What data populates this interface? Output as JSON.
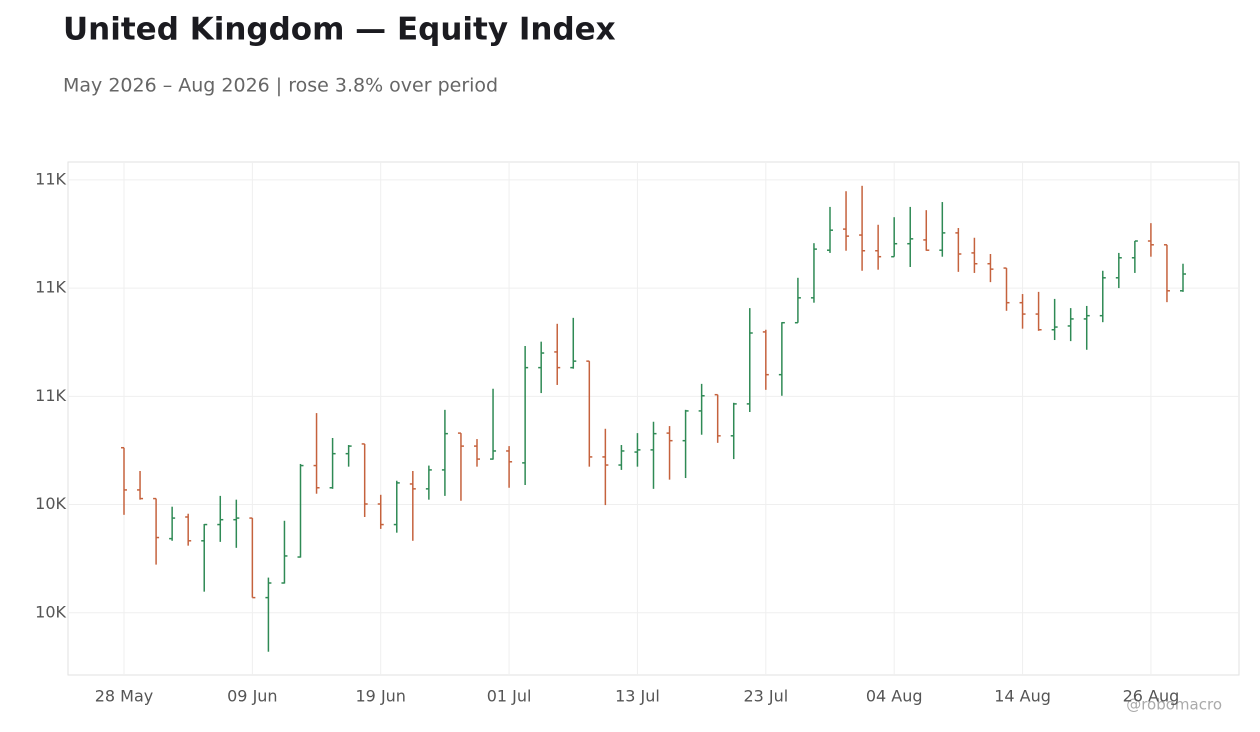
{
  "chart_data": {
    "type": "ohlc",
    "title": "United Kingdom — Equity Index",
    "subtitle": "May 2026 – Aug 2026 | rose 3.8% over period",
    "watermark": "@robomacro",
    "categories": [
      "28 May",
      null,
      null,
      null,
      null,
      null,
      null,
      null,
      "09 Jun",
      null,
      null,
      null,
      null,
      null,
      null,
      null,
      "19 Jun",
      null,
      null,
      null,
      null,
      null,
      null,
      null,
      "01 Jul",
      null,
      null,
      null,
      null,
      null,
      null,
      null,
      "13 Jul",
      null,
      null,
      null,
      null,
      null,
      null,
      null,
      "23 Jul",
      null,
      null,
      null,
      null,
      null,
      null,
      null,
      "04 Aug",
      null,
      null,
      null,
      null,
      null,
      null,
      null,
      "14 Aug",
      null,
      null,
      null,
      null,
      null,
      null,
      null,
      "26 Aug",
      null,
      null
    ],
    "open": [
      10505,
      10427,
      10411,
      10337,
      10377,
      10333,
      10363,
      10372,
      10375,
      10228,
      10255,
      10303,
      10472,
      10431,
      10494,
      10512,
      10401,
      10363,
      10438,
      10429,
      10464,
      10532,
      10508,
      10484,
      10499,
      10477,
      10653,
      10682,
      10653,
      10665,
      10488,
      10473,
      10497,
      10501,
      10532,
      10518,
      10573,
      10603,
      10527,
      10586,
      10719,
      10640,
      10736,
      10782,
      10870,
      10909,
      10898,
      10869,
      10858,
      10882,
      10889,
      10870,
      10902,
      10865,
      10845,
      10837,
      10773,
      10752,
      10723,
      10730,
      10743,
      10749,
      10819,
      10856,
      10887,
      10880,
      10795
    ],
    "high": [
      10505,
      10462,
      10411,
      10396,
      10383,
      10364,
      10416,
      10409,
      10375,
      10265,
      10370,
      10475,
      10569,
      10523,
      10510,
      10512,
      10418,
      10444,
      10462,
      10472,
      10575,
      10532,
      10521,
      10614,
      10508,
      10693,
      10701,
      10734,
      10745,
      10665,
      10540,
      10510,
      10532,
      10553,
      10545,
      10575,
      10623,
      10603,
      10588,
      10763,
      10723,
      10737,
      10819,
      10883,
      10950,
      10979,
      10989,
      10917,
      10931,
      10950,
      10944,
      10959,
      10911,
      10893,
      10863,
      10837,
      10789,
      10793,
      10780,
      10763,
      10767,
      10832,
      10865,
      10887,
      10920,
      10880,
      10845
    ],
    "low": [
      10381,
      10409,
      10289,
      10333,
      10324,
      10239,
      10331,
      10320,
      10228,
      10128,
      10254,
      10302,
      10420,
      10429,
      10470,
      10377,
      10355,
      10348,
      10333,
      10409,
      10416,
      10407,
      10470,
      10483,
      10431,
      10436,
      10606,
      10621,
      10651,
      10470,
      10399,
      10464,
      10470,
      10429,
      10446,
      10449,
      10529,
      10514,
      10484,
      10571,
      10612,
      10601,
      10736,
      10773,
      10865,
      10869,
      10832,
      10834,
      10858,
      10839,
      10869,
      10858,
      10830,
      10828,
      10811,
      10758,
      10725,
      10721,
      10704,
      10702,
      10686,
      10737,
      10800,
      10828,
      10858,
      10774,
      10793
    ],
    "close": [
      10427,
      10411,
      10339,
      10375,
      10333,
      10363,
      10372,
      10375,
      10228,
      10255,
      10305,
      10472,
      10431,
      10494,
      10508,
      10401,
      10363,
      10440,
      10429,
      10464,
      10531,
      10508,
      10484,
      10499,
      10479,
      10653,
      10680,
      10653,
      10665,
      10488,
      10473,
      10499,
      10501,
      10531,
      10518,
      10573,
      10601,
      10527,
      10586,
      10717,
      10640,
      10736,
      10782,
      10872,
      10907,
      10896,
      10869,
      10858,
      10882,
      10891,
      10870,
      10902,
      10863,
      10845,
      10835,
      10773,
      10752,
      10723,
      10728,
      10743,
      10749,
      10819,
      10856,
      10887,
      10880,
      10795,
      10826
    ],
    "up_color": "#2f8a55",
    "down_color": "#c5623d",
    "ylim": [
      10085,
      11033
    ],
    "yticks": [
      {
        "value": 10200,
        "label": "10K"
      },
      {
        "value": 10400,
        "label": "10K"
      },
      {
        "value": 10600,
        "label": "11K"
      },
      {
        "value": 10800,
        "label": "11K"
      },
      {
        "value": 11000,
        "label": "11K"
      }
    ],
    "grid": true
  }
}
